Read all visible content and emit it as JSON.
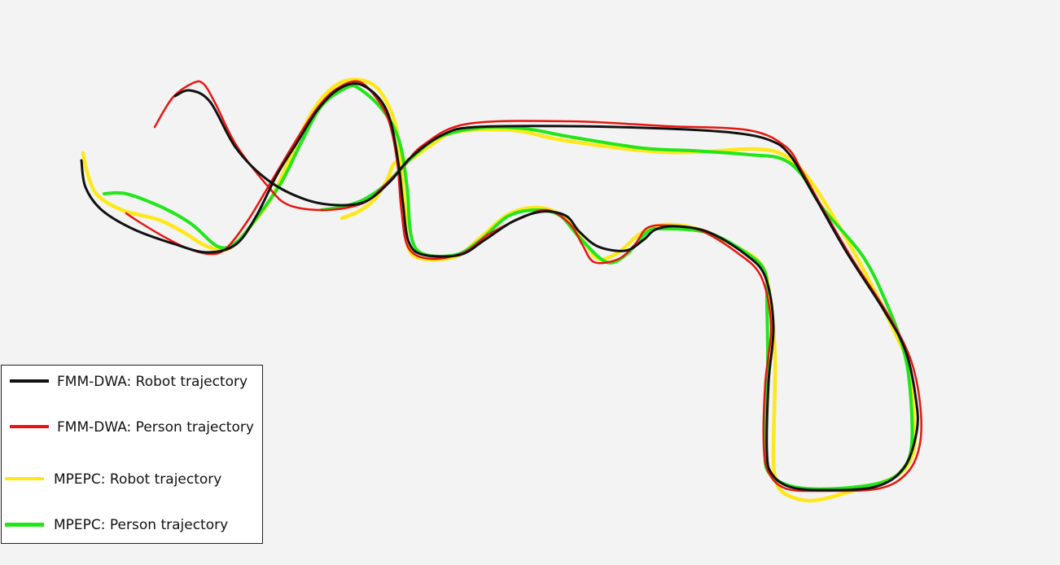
{
  "chart_data": {
    "type": "line",
    "title": "",
    "xlabel": "",
    "ylabel": "",
    "grid": false,
    "legend_placement": "bottom-left",
    "series": [
      {
        "name": "FMM-DWA: Robot trajectory",
        "color": "#111111",
        "points": [
          [
            215,
            118
          ],
          [
            233,
            111
          ],
          [
            258,
            125
          ],
          [
            290,
            182
          ],
          [
            330,
            222
          ],
          [
            375,
            245
          ],
          [
            415,
            252
          ],
          [
            450,
            247
          ],
          [
            480,
            222
          ],
          [
            505,
            193
          ],
          [
            545,
            165
          ],
          [
            585,
            156
          ],
          [
            700,
            155
          ],
          [
            820,
            158
          ],
          [
            900,
            163
          ],
          [
            945,
            172
          ],
          [
            970,
            190
          ],
          [
            1000,
            240
          ],
          [
            1040,
            310
          ],
          [
            1085,
            380
          ],
          [
            1112,
            430
          ],
          [
            1125,
            490
          ],
          [
            1126,
            530
          ],
          [
            1110,
            575
          ],
          [
            1075,
            598
          ],
          [
            1010,
            602
          ],
          [
            970,
            598
          ],
          [
            948,
            582
          ],
          [
            942,
            555
          ],
          [
            944,
            470
          ],
          [
            950,
            400
          ],
          [
            940,
            340
          ],
          [
            915,
            312
          ],
          [
            870,
            285
          ],
          [
            830,
            278
          ],
          [
            805,
            282
          ],
          [
            790,
            295
          ],
          [
            768,
            308
          ],
          [
            735,
            303
          ],
          [
            712,
            285
          ],
          [
            695,
            265
          ],
          [
            665,
            260
          ],
          [
            630,
            272
          ],
          [
            595,
            295
          ],
          [
            565,
            313
          ],
          [
            520,
            313
          ],
          [
            502,
            297
          ],
          [
            495,
            250
          ],
          [
            490,
            205
          ],
          [
            480,
            150
          ],
          [
            465,
            120
          ],
          [
            440,
            103
          ],
          [
            415,
            110
          ],
          [
            390,
            135
          ],
          [
            365,
            175
          ],
          [
            340,
            215
          ],
          [
            315,
            265
          ],
          [
            290,
            300
          ],
          [
            255,
            310
          ],
          [
            215,
            300
          ],
          [
            165,
            282
          ],
          [
            125,
            258
          ],
          [
            105,
            230
          ],
          [
            100,
            197
          ]
        ]
      },
      {
        "name": "FMM-DWA: Person trajectory",
        "color": "#e8150f",
        "points": [
          [
            190,
            156
          ],
          [
            212,
            120
          ],
          [
            237,
            102
          ],
          [
            250,
            103
          ],
          [
            265,
            128
          ],
          [
            290,
            178
          ],
          [
            330,
            230
          ],
          [
            355,
            252
          ],
          [
            400,
            258
          ],
          [
            445,
            250
          ],
          [
            470,
            230
          ],
          [
            495,
            205
          ],
          [
            520,
            178
          ],
          [
            575,
            152
          ],
          [
            700,
            149
          ],
          [
            820,
            155
          ],
          [
            920,
            160
          ],
          [
            965,
            180
          ],
          [
            985,
            210
          ],
          [
            1010,
            255
          ],
          [
            1045,
            315
          ],
          [
            1090,
            385
          ],
          [
            1118,
            440
          ],
          [
            1130,
            495
          ],
          [
            1130,
            545
          ],
          [
            1115,
            580
          ],
          [
            1080,
            600
          ],
          [
            1010,
            603
          ],
          [
            965,
            600
          ],
          [
            944,
            580
          ],
          [
            938,
            545
          ],
          [
            940,
            470
          ],
          [
            947,
            400
          ],
          [
            935,
            340
          ],
          [
            905,
            310
          ],
          [
            860,
            283
          ],
          [
            820,
            277
          ],
          [
            795,
            280
          ],
          [
            780,
            300
          ],
          [
            760,
            318
          ],
          [
            730,
            322
          ],
          [
            715,
            300
          ],
          [
            700,
            275
          ],
          [
            672,
            258
          ],
          [
            640,
            268
          ],
          [
            600,
            288
          ],
          [
            570,
            310
          ],
          [
            530,
            318
          ],
          [
            502,
            305
          ],
          [
            493,
            258
          ],
          [
            488,
            200
          ],
          [
            478,
            150
          ],
          [
            462,
            120
          ],
          [
            440,
            100
          ],
          [
            412,
            110
          ],
          [
            388,
            135
          ],
          [
            362,
            175
          ],
          [
            335,
            220
          ],
          [
            305,
            270
          ],
          [
            278,
            305
          ],
          [
            258,
            312
          ],
          [
            230,
            305
          ],
          [
            200,
            290
          ],
          [
            170,
            272
          ],
          [
            155,
            262
          ]
        ]
      },
      {
        "name": "MPEPC: Robot trajectory",
        "color": "#ffe81a",
        "points": [
          [
            102,
            188
          ],
          [
            108,
            215
          ],
          [
            120,
            240
          ],
          [
            150,
            258
          ],
          [
            195,
            270
          ],
          [
            225,
            285
          ],
          [
            255,
            303
          ],
          [
            282,
            305
          ],
          [
            310,
            275
          ],
          [
            335,
            240
          ],
          [
            360,
            185
          ],
          [
            385,
            135
          ],
          [
            412,
            105
          ],
          [
            440,
            98
          ],
          [
            465,
            110
          ],
          [
            485,
            150
          ],
          [
            492,
            200
          ],
          [
            498,
            260
          ],
          [
            502,
            305
          ],
          [
            520,
            318
          ],
          [
            560,
            315
          ],
          [
            590,
            292
          ],
          [
            625,
            263
          ],
          [
            660,
            255
          ],
          [
            690,
            265
          ],
          [
            718,
            298
          ],
          [
            735,
            318
          ],
          [
            760,
            310
          ],
          [
            785,
            288
          ],
          [
            815,
            276
          ],
          [
            860,
            282
          ],
          [
            908,
            305
          ],
          [
            935,
            325
          ],
          [
            945,
            360
          ],
          [
            952,
            440
          ],
          [
            950,
            550
          ],
          [
            952,
            585
          ],
          [
            962,
            605
          ],
          [
            995,
            615
          ],
          [
            1040,
            605
          ],
          [
            1100,
            585
          ],
          [
            1122,
            555
          ],
          [
            1122,
            510
          ],
          [
            1118,
            455
          ],
          [
            1100,
            410
          ],
          [
            1060,
            330
          ],
          [
            1020,
            260
          ],
          [
            990,
            215
          ],
          [
            962,
            190
          ],
          [
            925,
            183
          ],
          [
            850,
            187
          ],
          [
            790,
            185
          ],
          [
            690,
            172
          ],
          [
            630,
            160
          ],
          [
            560,
            162
          ],
          [
            530,
            178
          ],
          [
            505,
            195
          ],
          [
            485,
            200
          ],
          [
            475,
            222
          ],
          [
            460,
            245
          ],
          [
            440,
            260
          ],
          [
            420,
            268
          ]
        ]
      },
      {
        "name": "MPEPC: Person trajectory",
        "color": "#22e61a",
        "points": [
          [
            128,
            238
          ],
          [
            155,
            238
          ],
          [
            200,
            255
          ],
          [
            235,
            275
          ],
          [
            268,
            303
          ],
          [
            290,
            298
          ],
          [
            315,
            268
          ],
          [
            345,
            225
          ],
          [
            370,
            175
          ],
          [
            395,
            130
          ],
          [
            425,
            108
          ],
          [
            440,
            108
          ],
          [
            470,
            135
          ],
          [
            490,
            172
          ],
          [
            500,
            230
          ],
          [
            505,
            290
          ],
          [
            520,
            312
          ],
          [
            560,
            313
          ],
          [
            590,
            295
          ],
          [
            625,
            265
          ],
          [
            660,
            258
          ],
          [
            688,
            265
          ],
          [
            712,
            292
          ],
          [
            745,
            322
          ],
          [
            770,
            312
          ],
          [
            795,
            285
          ],
          [
            815,
            281
          ],
          [
            870,
            286
          ],
          [
            920,
            313
          ],
          [
            940,
            335
          ],
          [
            942,
            375
          ],
          [
            943,
            460
          ],
          [
            940,
            545
          ],
          [
            944,
            580
          ],
          [
            975,
            598
          ],
          [
            1030,
            600
          ],
          [
            1085,
            592
          ],
          [
            1110,
            575
          ],
          [
            1120,
            545
          ],
          [
            1118,
            480
          ],
          [
            1110,
            430
          ],
          [
            1090,
            375
          ],
          [
            1060,
            315
          ],
          [
            1010,
            255
          ],
          [
            985,
            215
          ],
          [
            960,
            195
          ],
          [
            920,
            190
          ],
          [
            850,
            185
          ],
          [
            790,
            182
          ],
          [
            700,
            168
          ],
          [
            645,
            158
          ],
          [
            590,
            157
          ],
          [
            540,
            168
          ],
          [
            510,
            190
          ],
          [
            485,
            215
          ],
          [
            470,
            230
          ],
          [
            445,
            246
          ],
          [
            420,
            254
          ],
          [
            395,
            258
          ]
        ]
      }
    ]
  }
}
